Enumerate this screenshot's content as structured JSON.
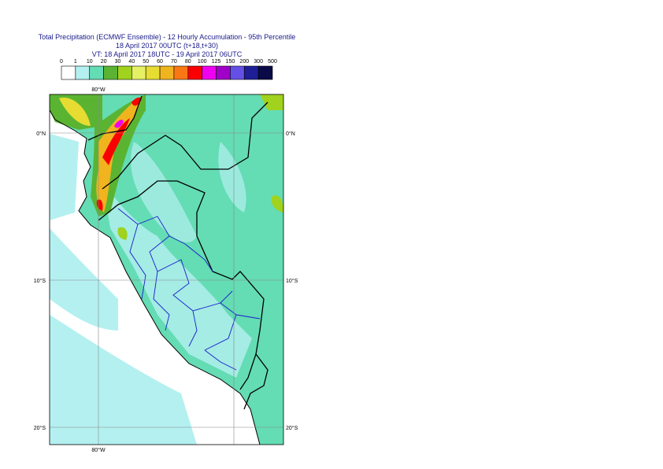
{
  "header": {
    "title": "Total Precipitation (ECMWF Ensemble) - 12 Hourly Accumulation - 95th Percentile",
    "base": "18 April 2017 00UTC (t+18,t+30)",
    "valid": "VT: 18 April 2017 18UTC - 19 April 2017 06UTC"
  },
  "legend": {
    "labels": [
      0,
      1,
      10,
      20,
      30,
      40,
      50,
      60,
      70,
      80,
      100,
      125,
      150,
      200,
      300,
      500
    ],
    "colors": [
      "#ffffff",
      "#b4f0f0",
      "#64dcb4",
      "#5ab432",
      "#a0d21e",
      "#e6f064",
      "#e6dc32",
      "#f0b41e",
      "#fa7814",
      "#fa0000",
      "#f000f0",
      "#a000c8",
      "#6450e6",
      "#1e1e96",
      "#0a0a46"
    ]
  },
  "map": {
    "lon_top": "80°W",
    "lon_bottom": "80°W",
    "lat_left": [
      "0°N",
      "10°S",
      "20°S"
    ],
    "lat_right": [
      "0°N",
      "10°S",
      "20°S"
    ]
  }
}
